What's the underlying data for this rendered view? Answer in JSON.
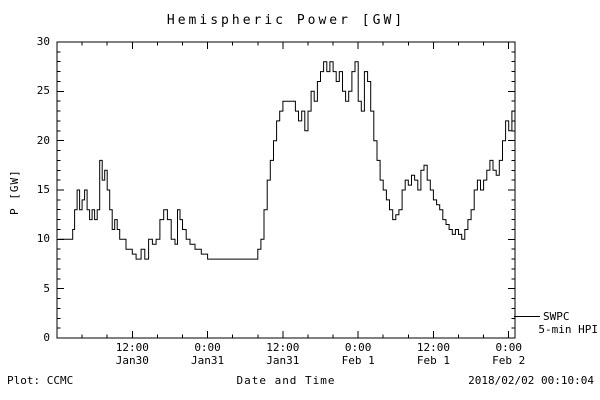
{
  "title": "Hemispheric Power [GW]",
  "ylabel": "P [GW]",
  "xlabel": "Date and Time",
  "footer_left": "Plot: CCMC",
  "footer_right": "2018/02/02 00:10:04",
  "legend": {
    "series_label": "SWPC",
    "sub_label": "5-min HPI"
  },
  "colors": {
    "line": "#000000",
    "background": "#ffffff",
    "text": "#000000"
  },
  "chart_data": {
    "type": "line",
    "style": "step",
    "title": "Hemispheric Power [GW]",
    "xlabel": "Date and Time",
    "ylabel": "P [GW]",
    "legend_position": "right-outside-bottom",
    "grid": false,
    "x_unit": "hours since Jan 30 00:00",
    "xlim": [
      0,
      73
    ],
    "ylim": [
      0,
      30
    ],
    "yticks": [
      0,
      5,
      10,
      15,
      20,
      25,
      30
    ],
    "xticks": [
      {
        "hour": 12,
        "time": "12:00",
        "date": "Jan30"
      },
      {
        "hour": 24,
        "time": "0:00",
        "date": "Jan31"
      },
      {
        "hour": 36,
        "time": "12:00",
        "date": "Jan31"
      },
      {
        "hour": 48,
        "time": "0:00",
        "date": "Feb 1"
      },
      {
        "hour": 60,
        "time": "12:00",
        "date": "Feb 1"
      },
      {
        "hour": 72,
        "time": "0:00",
        "date": "Feb 2"
      }
    ],
    "series": [
      {
        "name": "SWPC 5-min HPI",
        "color": "#000000",
        "points": [
          [
            0.2,
            10
          ],
          [
            2.2,
            10
          ],
          [
            2.5,
            11
          ],
          [
            2.8,
            13
          ],
          [
            3.2,
            15
          ],
          [
            3.6,
            13
          ],
          [
            4.0,
            14
          ],
          [
            4.4,
            15
          ],
          [
            4.8,
            13
          ],
          [
            5.2,
            12
          ],
          [
            5.6,
            13
          ],
          [
            6.0,
            12
          ],
          [
            6.4,
            13
          ],
          [
            6.8,
            18
          ],
          [
            7.2,
            16
          ],
          [
            7.6,
            17
          ],
          [
            8.0,
            15
          ],
          [
            8.4,
            13
          ],
          [
            8.8,
            11
          ],
          [
            9.2,
            12
          ],
          [
            9.6,
            11
          ],
          [
            10.0,
            10
          ],
          [
            10.6,
            10
          ],
          [
            11.0,
            9
          ],
          [
            11.6,
            9
          ],
          [
            12.0,
            8.5
          ],
          [
            12.6,
            8
          ],
          [
            13.4,
            9
          ],
          [
            14.0,
            8
          ],
          [
            14.6,
            10
          ],
          [
            15.2,
            9.5
          ],
          [
            15.8,
            10
          ],
          [
            16.4,
            12
          ],
          [
            17.0,
            13
          ],
          [
            17.6,
            12
          ],
          [
            18.2,
            10
          ],
          [
            18.8,
            9.5
          ],
          [
            19.2,
            13
          ],
          [
            19.6,
            12
          ],
          [
            20.0,
            11
          ],
          [
            20.6,
            10
          ],
          [
            21.2,
            9.5
          ],
          [
            22.0,
            9
          ],
          [
            23.0,
            8.5
          ],
          [
            24.0,
            8
          ],
          [
            31.5,
            8
          ],
          [
            32.0,
            9
          ],
          [
            32.5,
            10
          ],
          [
            33.0,
            13
          ],
          [
            33.5,
            16
          ],
          [
            34.0,
            18
          ],
          [
            34.5,
            20
          ],
          [
            35.0,
            22
          ],
          [
            35.5,
            23
          ],
          [
            36.0,
            24
          ],
          [
            37.5,
            24
          ],
          [
            38.0,
            23
          ],
          [
            38.5,
            22
          ],
          [
            39.0,
            23
          ],
          [
            39.5,
            21
          ],
          [
            40.0,
            23
          ],
          [
            40.5,
            25
          ],
          [
            41.0,
            24
          ],
          [
            41.5,
            26
          ],
          [
            42.0,
            27
          ],
          [
            42.5,
            28
          ],
          [
            43.0,
            27
          ],
          [
            43.5,
            28
          ],
          [
            44.0,
            27
          ],
          [
            44.5,
            26
          ],
          [
            45.0,
            27
          ],
          [
            45.5,
            25
          ],
          [
            46.0,
            24
          ],
          [
            46.5,
            25
          ],
          [
            47.0,
            27
          ],
          [
            47.5,
            28
          ],
          [
            48.0,
            24
          ],
          [
            48.5,
            23
          ],
          [
            49.0,
            27
          ],
          [
            49.5,
            26
          ],
          [
            50.0,
            23
          ],
          [
            50.5,
            20
          ],
          [
            51.0,
            18
          ],
          [
            51.5,
            16
          ],
          [
            52.0,
            15
          ],
          [
            52.5,
            14
          ],
          [
            53.0,
            13
          ],
          [
            53.5,
            12
          ],
          [
            54.0,
            12.5
          ],
          [
            54.5,
            13
          ],
          [
            55.0,
            15
          ],
          [
            55.5,
            16
          ],
          [
            56.0,
            15.5
          ],
          [
            56.5,
            16.5
          ],
          [
            57.0,
            16
          ],
          [
            57.5,
            15
          ],
          [
            58.0,
            17
          ],
          [
            58.5,
            17.5
          ],
          [
            59.0,
            16
          ],
          [
            59.5,
            15
          ],
          [
            60.0,
            14
          ],
          [
            60.5,
            13.5
          ],
          [
            61.0,
            13
          ],
          [
            61.5,
            12
          ],
          [
            62.0,
            11.5
          ],
          [
            62.5,
            11
          ],
          [
            63.0,
            10.5
          ],
          [
            63.5,
            11
          ],
          [
            64.0,
            10.5
          ],
          [
            64.5,
            10
          ],
          [
            65.0,
            11
          ],
          [
            65.5,
            12
          ],
          [
            66.0,
            13
          ],
          [
            66.5,
            15
          ],
          [
            67.0,
            16
          ],
          [
            67.5,
            15
          ],
          [
            68.0,
            16
          ],
          [
            68.5,
            17
          ],
          [
            69.0,
            18
          ],
          [
            69.5,
            17
          ],
          [
            70.0,
            16.5
          ],
          [
            70.5,
            18
          ],
          [
            71.0,
            20
          ],
          [
            71.5,
            22
          ],
          [
            72.0,
            21
          ],
          [
            72.5,
            23
          ],
          [
            73.0,
            23
          ]
        ]
      }
    ]
  }
}
